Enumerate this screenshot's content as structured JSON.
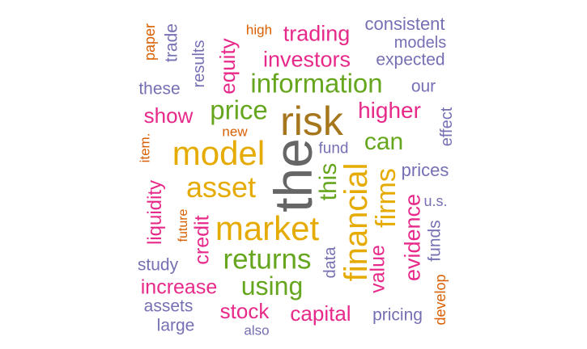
{
  "colors": {
    "gray": "#666666",
    "gold": "#E6AB02",
    "brown": "#A6761D",
    "green": "#66A61E",
    "pink": "#E7298A",
    "purple": "#7570B3",
    "orange": "#D95F02"
  },
  "words": [
    {
      "id": "the",
      "text": "the"
    },
    {
      "id": "risk",
      "text": "risk"
    },
    {
      "id": "model",
      "text": "model"
    },
    {
      "id": "market",
      "text": "market"
    },
    {
      "id": "asset",
      "text": "asset"
    },
    {
      "id": "financial",
      "text": "financial"
    },
    {
      "id": "information",
      "text": "information"
    },
    {
      "id": "price",
      "text": "price"
    },
    {
      "id": "returns",
      "text": "returns"
    },
    {
      "id": "firms",
      "text": "firms"
    },
    {
      "id": "using",
      "text": "using"
    },
    {
      "id": "can",
      "text": "can"
    },
    {
      "id": "this",
      "text": "this"
    },
    {
      "id": "investors",
      "text": "investors"
    },
    {
      "id": "trading",
      "text": "trading"
    },
    {
      "id": "higher",
      "text": "higher"
    },
    {
      "id": "equity",
      "text": "equity"
    },
    {
      "id": "evidence",
      "text": "evidence"
    },
    {
      "id": "value",
      "text": "value"
    },
    {
      "id": "capital",
      "text": "capital"
    },
    {
      "id": "stock",
      "text": "stock"
    },
    {
      "id": "increase",
      "text": "increase"
    },
    {
      "id": "show",
      "text": "show"
    },
    {
      "id": "credit",
      "text": "credit"
    },
    {
      "id": "liquidity",
      "text": "liquidity"
    },
    {
      "id": "consistent",
      "text": "consistent"
    },
    {
      "id": "models",
      "text": "models"
    },
    {
      "id": "expected",
      "text": "expected"
    },
    {
      "id": "prices",
      "text": "prices"
    },
    {
      "id": "pricing",
      "text": "pricing"
    },
    {
      "id": "funds",
      "text": "funds"
    },
    {
      "id": "these",
      "text": "these"
    },
    {
      "id": "results",
      "text": "results"
    },
    {
      "id": "trade",
      "text": "trade"
    },
    {
      "id": "our",
      "text": "our"
    },
    {
      "id": "effect",
      "text": "effect"
    },
    {
      "id": "fund",
      "text": "fund"
    },
    {
      "id": "data",
      "text": "data"
    },
    {
      "id": "study",
      "text": "study"
    },
    {
      "id": "assets",
      "text": "assets"
    },
    {
      "id": "large",
      "text": "large"
    },
    {
      "id": "also",
      "text": "also"
    },
    {
      "id": "us",
      "text": "u.s."
    },
    {
      "id": "paper",
      "text": "paper"
    },
    {
      "id": "high",
      "text": "high"
    },
    {
      "id": "new",
      "text": "new"
    },
    {
      "id": "item",
      "text": "item."
    },
    {
      "id": "future",
      "text": "future"
    },
    {
      "id": "develop",
      "text": "develop"
    }
  ]
}
